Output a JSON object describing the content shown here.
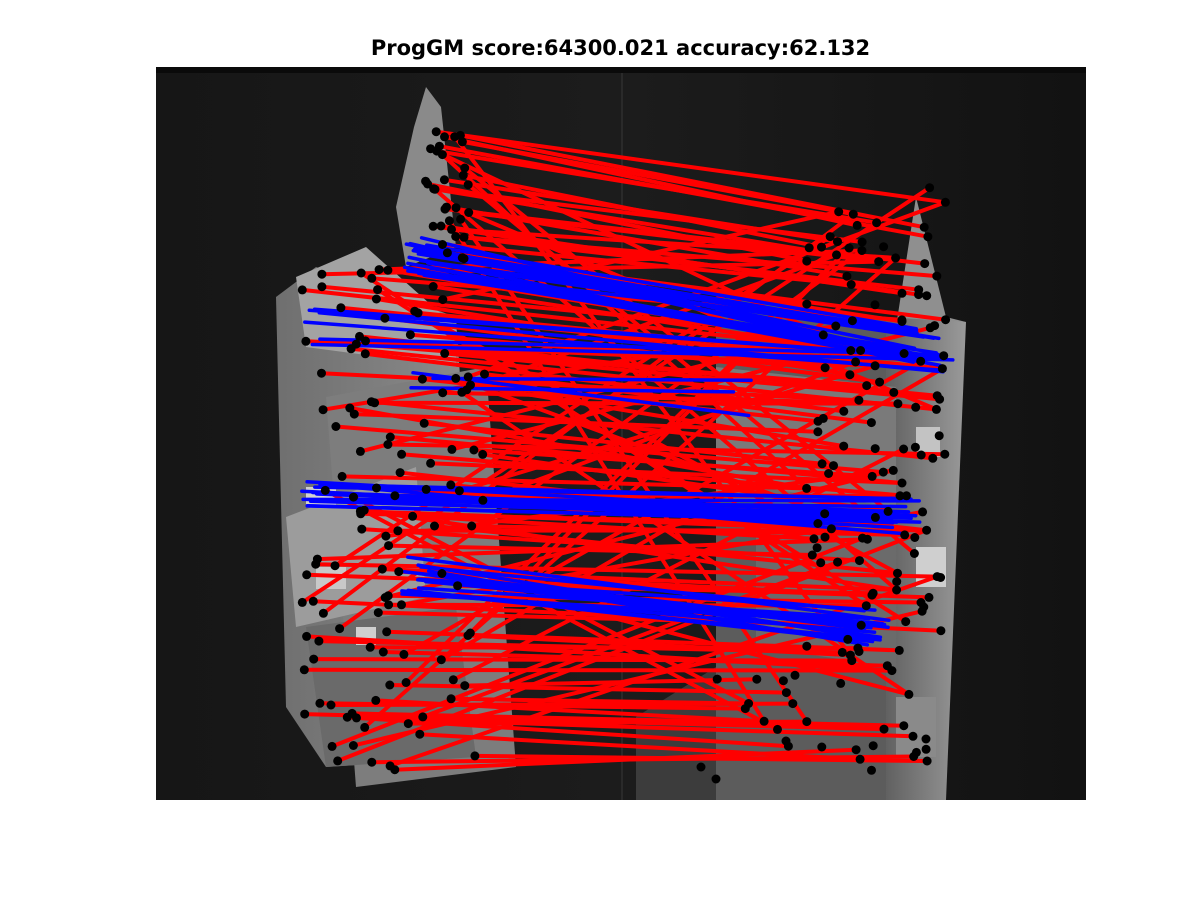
{
  "figure": {
    "title": "ProgGM score:64300.021 accuracy:62.132"
  },
  "colors": {
    "background": "#ffffff",
    "image_dark": "#141414",
    "match_incorrect": "#ff0000",
    "match_correct": "#0000ff",
    "keypoint": "#000000"
  }
}
